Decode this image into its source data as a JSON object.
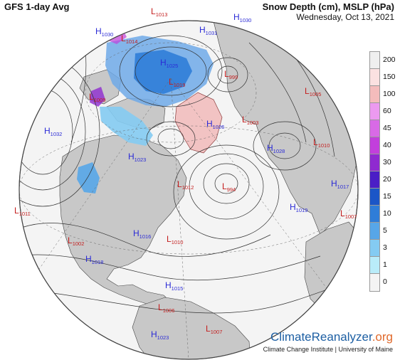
{
  "header": {
    "model_title": "GFS 1-day Avg",
    "product_title": "Snow Depth (cm), MSLP (hPa)",
    "date": "Wednesday, Oct 13, 2021"
  },
  "legend": {
    "unit": "cm",
    "levels": [
      {
        "label": "200",
        "color": "#efefef"
      },
      {
        "label": "150",
        "color": "#fbe1e1"
      },
      {
        "label": "100",
        "color": "#f4bcbc"
      },
      {
        "label": "60",
        "color": "#ec9af0"
      },
      {
        "label": "45",
        "color": "#d86ae6"
      },
      {
        "label": "40",
        "color": "#c23fdc"
      },
      {
        "label": "30",
        "color": "#8f2ad0"
      },
      {
        "label": "20",
        "color": "#4b1ec6"
      },
      {
        "label": "15",
        "color": "#1b56c7"
      },
      {
        "label": "10",
        "color": "#2f7dd8"
      },
      {
        "label": "5",
        "color": "#57a6e8"
      },
      {
        "label": "3",
        "color": "#84cbf2"
      },
      {
        "label": "1",
        "color": "#b9ecf9"
      },
      {
        "label": "0",
        "color": "#f4f4f4"
      }
    ]
  },
  "pressure_centers": [
    {
      "type": "H",
      "value": "1032",
      "color": "#2b2bd6"
    },
    {
      "type": "H",
      "value": "1030",
      "color": "#2b2bd6"
    },
    {
      "type": "H",
      "value": "1031",
      "color": "#2b2bd6"
    },
    {
      "type": "H",
      "value": "1030",
      "color": "#2b2bd6"
    },
    {
      "type": "H",
      "value": "1025",
      "color": "#2b2bd6"
    },
    {
      "type": "H",
      "value": "1023",
      "color": "#2b2bd6"
    },
    {
      "type": "H",
      "value": "1028",
      "color": "#2b2bd6"
    },
    {
      "type": "H",
      "value": "1017",
      "color": "#2b2bd6"
    },
    {
      "type": "H",
      "value": "1019",
      "color": "#2b2bd6"
    },
    {
      "type": "H",
      "value": "1016",
      "color": "#2b2bd6"
    },
    {
      "type": "H",
      "value": "1018",
      "color": "#2b2bd6"
    },
    {
      "type": "H",
      "value": "1015",
      "color": "#2b2bd6"
    },
    {
      "type": "H",
      "value": "1026",
      "color": "#2b2bd6"
    },
    {
      "type": "H",
      "value": "1023",
      "color": "#2b2bd6"
    },
    {
      "type": "L",
      "value": "1013",
      "color": "#c41e1e"
    },
    {
      "type": "L",
      "value": "1019",
      "color": "#c41e1e"
    },
    {
      "type": "L",
      "value": "999",
      "color": "#c41e1e"
    },
    {
      "type": "L",
      "value": "1005",
      "color": "#c41e1e"
    },
    {
      "type": "L",
      "value": "1003",
      "color": "#c41e1e"
    },
    {
      "type": "L",
      "value": "1010",
      "color": "#c41e1e"
    },
    {
      "type": "L",
      "value": "1012",
      "color": "#c41e1e"
    },
    {
      "type": "L",
      "value": "994",
      "color": "#c41e1e"
    },
    {
      "type": "L",
      "value": "1007",
      "color": "#c41e1e"
    },
    {
      "type": "L",
      "value": "1011",
      "color": "#c41e1e"
    },
    {
      "type": "L",
      "value": "1002",
      "color": "#c41e1e"
    },
    {
      "type": "L",
      "value": "1010",
      "color": "#c41e1e"
    },
    {
      "type": "L",
      "value": "1006",
      "color": "#c41e1e"
    },
    {
      "type": "L",
      "value": "1007",
      "color": "#c41e1e"
    },
    {
      "type": "L",
      "value": "1009",
      "color": "#c41e1e"
    },
    {
      "type": "L",
      "value": "1014",
      "color": "#c41e1e"
    }
  ],
  "branding": {
    "name_part1": "Climate",
    "name_part2": "Reanalyzer",
    "name_part3": ".org",
    "credit": "Climate Change Institute | University of Maine",
    "brand_blue": "#1d5fa3",
    "brand_orange": "#e0692b"
  }
}
